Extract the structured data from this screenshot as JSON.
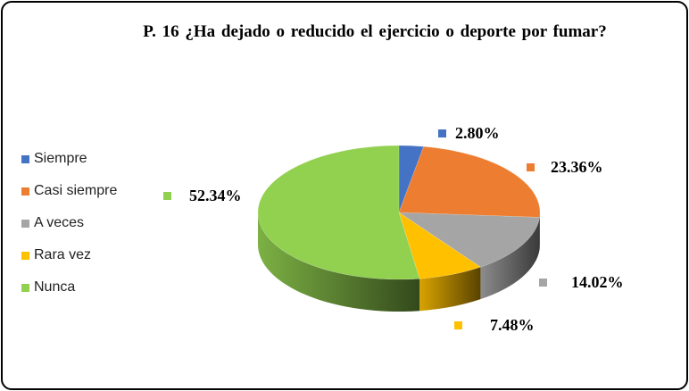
{
  "chart_data": {
    "type": "pie",
    "title": "P. 16 ¿Ha dejado o reducido el ejercicio o deporte por fumar?",
    "categories": [
      "Siempre",
      "Casi siempre",
      "A veces",
      "Rara vez",
      "Nunca"
    ],
    "values": [
      2.8,
      23.36,
      14.02,
      7.48,
      52.34
    ],
    "labels": [
      "2.80%",
      "23.36%",
      "14.02%",
      "7.48%",
      "52.34%"
    ],
    "colors": [
      "#4472C4",
      "#ED7D31",
      "#A5A5A5",
      "#FFC000",
      "#92D050"
    ],
    "legend_position": "left",
    "style": "3d"
  }
}
